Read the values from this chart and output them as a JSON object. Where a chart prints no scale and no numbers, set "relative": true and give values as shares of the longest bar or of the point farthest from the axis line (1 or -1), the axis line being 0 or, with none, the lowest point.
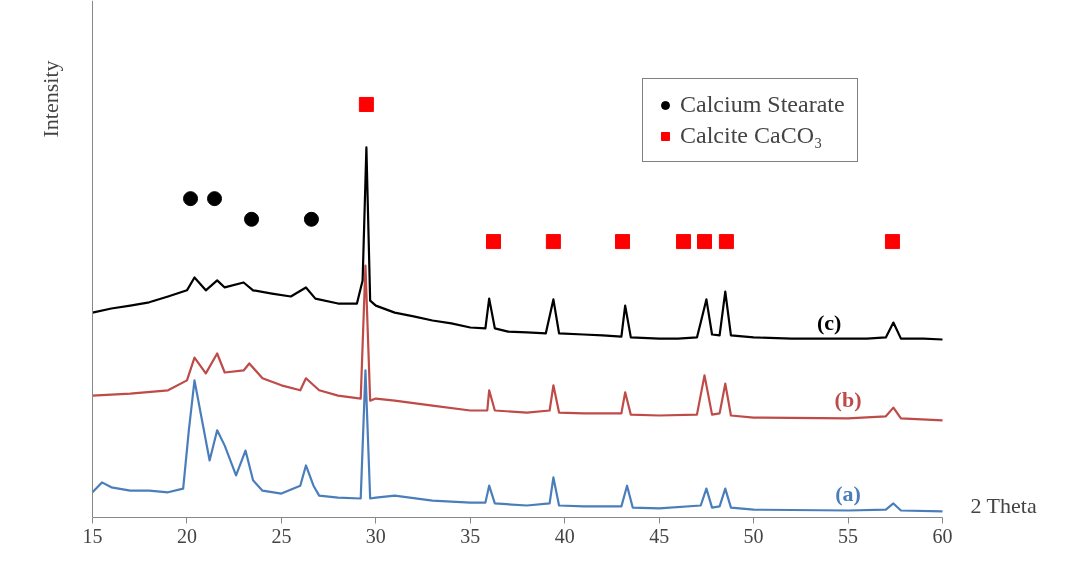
{
  "chart_data": {
    "type": "line",
    "relative": true,
    "xlabel": "2 Theta",
    "ylabel": "Intensity",
    "xlim": [
      15,
      60
    ],
    "xticks": [
      15,
      20,
      25,
      30,
      35,
      40,
      45,
      50,
      55,
      60
    ],
    "grid": false,
    "legend": "top right",
    "series": [
      {
        "name": "(a)",
        "color": "#4a7ebb",
        "marker": "none",
        "x": [
          15,
          15.5,
          16,
          17,
          18,
          19,
          19.8,
          20.1,
          20.4,
          20.8,
          21.2,
          21.6,
          22,
          22.6,
          23.1,
          23.5,
          24,
          25,
          26,
          26.3,
          26.7,
          27,
          28,
          29.2,
          29.45,
          29.7,
          30,
          31,
          33,
          35,
          35.8,
          36.0,
          36.3,
          38,
          39.2,
          39.4,
          39.7,
          41,
          43,
          43.3,
          43.6,
          45,
          47.2,
          47.5,
          47.8,
          48.2,
          48.5,
          48.8,
          50,
          55,
          57,
          57.4,
          57.8,
          60
        ],
        "values": [
          0.061,
          0.085,
          0.073,
          0.065,
          0.065,
          0.061,
          0.07,
          0.211,
          0.332,
          0.235,
          0.138,
          0.211,
          0.174,
          0.102,
          0.162,
          0.09,
          0.065,
          0.058,
          0.077,
          0.126,
          0.077,
          0.053,
          0.048,
          0.046,
          0.356,
          0.046,
          0.048,
          0.053,
          0.041,
          0.036,
          0.036,
          0.077,
          0.034,
          0.029,
          0.034,
          0.097,
          0.029,
          0.027,
          0.027,
          0.077,
          0.024,
          0.022,
          0.029,
          0.07,
          0.024,
          0.027,
          0.07,
          0.024,
          0.019,
          0.017,
          0.019,
          0.034,
          0.017,
          0.015
        ]
      },
      {
        "name": "(b)",
        "color": "#be4b48",
        "marker": "none",
        "x": [
          15,
          17,
          19,
          20,
          20.4,
          21,
          21.6,
          22,
          23,
          23.3,
          24,
          25,
          26,
          26.3,
          27,
          28,
          29.2,
          29.45,
          29.7,
          30,
          31,
          33,
          35,
          35.9,
          36.0,
          36.3,
          38,
          39.2,
          39.4,
          39.7,
          41,
          43,
          43.2,
          43.5,
          45,
          47,
          47.4,
          47.8,
          48.2,
          48.5,
          48.8,
          50,
          55,
          57,
          57.4,
          57.8,
          60
        ],
        "values": [
          0.295,
          0.3,
          0.308,
          0.332,
          0.387,
          0.349,
          0.397,
          0.351,
          0.356,
          0.373,
          0.337,
          0.32,
          0.308,
          0.337,
          0.308,
          0.295,
          0.288,
          0.61,
          0.283,
          0.288,
          0.283,
          0.271,
          0.259,
          0.259,
          0.308,
          0.259,
          0.254,
          0.259,
          0.32,
          0.254,
          0.252,
          0.252,
          0.303,
          0.249,
          0.247,
          0.249,
          0.344,
          0.249,
          0.252,
          0.324,
          0.247,
          0.242,
          0.24,
          0.245,
          0.266,
          0.24,
          0.235
        ]
      },
      {
        "name": "(c)",
        "color": "#000000",
        "marker": "none",
        "x": [
          15,
          16,
          17,
          18,
          19,
          20,
          20.4,
          21,
          21.6,
          22,
          23,
          23.5,
          24.5,
          25.5,
          26.3,
          26.8,
          28,
          29,
          29.3,
          29.5,
          29.7,
          30,
          31,
          32,
          33,
          34,
          35,
          35.8,
          36.0,
          36.3,
          37,
          38,
          39,
          39.4,
          39.7,
          41,
          42,
          43,
          43.2,
          43.5,
          45,
          46,
          47,
          47.2,
          47.5,
          47.8,
          48.2,
          48.5,
          48.8,
          50,
          52,
          54,
          56,
          57,
          57.4,
          57.8,
          59,
          60
        ],
        "values": [
          0.496,
          0.506,
          0.513,
          0.521,
          0.535,
          0.55,
          0.581,
          0.55,
          0.574,
          0.557,
          0.569,
          0.55,
          0.542,
          0.535,
          0.557,
          0.53,
          0.518,
          0.518,
          0.574,
          0.896,
          0.525,
          0.513,
          0.496,
          0.487,
          0.477,
          0.47,
          0.46,
          0.458,
          0.53,
          0.458,
          0.45,
          0.448,
          0.446,
          0.528,
          0.446,
          0.443,
          0.441,
          0.438,
          0.513,
          0.436,
          0.433,
          0.433,
          0.436,
          0.472,
          0.528,
          0.443,
          0.441,
          0.547,
          0.441,
          0.436,
          0.433,
          0.433,
          0.433,
          0.436,
          0.472,
          0.433,
          0.433,
          0.431
        ]
      },
      {
        "name": "Calcium Stearate",
        "type": "scatter",
        "marker": "circle",
        "color": "#000000",
        "x": [
          20.19,
          21.46,
          23.42,
          26.59
        ],
        "values": [
          0.772,
          0.772,
          0.722,
          0.722
        ]
      },
      {
        "name": "Calcite CaCO₃",
        "type": "scatter",
        "marker": "square",
        "color": "#ff0000",
        "x": [
          29.5,
          36.23,
          39.4,
          43.06,
          46.29,
          47.4,
          48.56,
          57.35
        ],
        "values": [
          1.0,
          0.668,
          0.668,
          0.668,
          0.668,
          0.668,
          0.668,
          0.668
        ]
      }
    ]
  }
}
